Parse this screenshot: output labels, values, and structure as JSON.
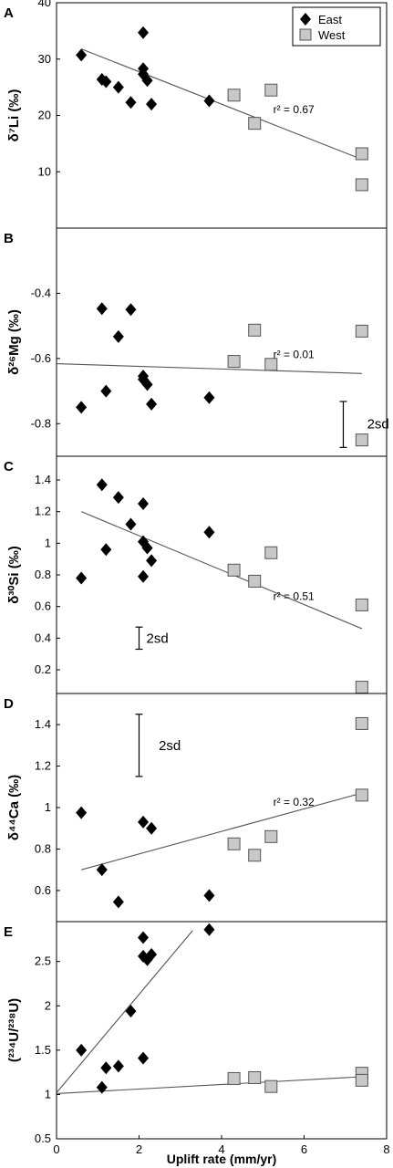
{
  "chart_data": [
    {
      "panel_letter": "A",
      "type": "scatter",
      "ylabel": "δ⁷Li (‰)",
      "ylim": [
        0,
        40
      ],
      "yticks": [
        "10",
        "20",
        "30",
        "40"
      ],
      "legend": {
        "placement": "top-right",
        "entries": [
          "East",
          "West"
        ]
      },
      "series": [
        {
          "name": "East",
          "marker": "diamond",
          "color": "#000000",
          "points": [
            [
              0.6,
              30.7
            ],
            [
              1.1,
              26.4
            ],
            [
              1.2,
              26.0
            ],
            [
              1.5,
              25.0
            ],
            [
              1.8,
              22.3
            ],
            [
              2.1,
              34.7
            ],
            [
              2.1,
              28.3
            ],
            [
              2.1,
              27.3
            ],
            [
              2.2,
              26.2
            ],
            [
              2.3,
              22.0
            ],
            [
              3.7,
              22.6
            ]
          ]
        },
        {
          "name": "West",
          "marker": "square",
          "color": "#c8c8c8",
          "points": [
            [
              4.3,
              23.6
            ],
            [
              4.8,
              18.6
            ],
            [
              5.2,
              24.5
            ],
            [
              7.4,
              13.2
            ],
            [
              7.4,
              7.7
            ]
          ]
        }
      ],
      "trendlines": [
        {
          "x1": 0.6,
          "y1": 31.8,
          "x2": 7.4,
          "y2": 12.2
        }
      ],
      "annotations": [
        {
          "text": "r² = 0.67",
          "x": 5.75,
          "y": 21.2
        }
      ]
    },
    {
      "panel_letter": "B",
      "type": "scatter",
      "ylabel": "δ²⁶Mg (‰)",
      "ylim": [
        -0.9,
        -0.2
      ],
      "yticks": [
        "-0.8",
        "-0.6",
        "-0.4"
      ],
      "series": [
        {
          "name": "East",
          "marker": "diamond",
          "color": "#000000",
          "points": [
            [
              0.6,
              -0.75
            ],
            [
              1.1,
              -0.447
            ],
            [
              1.2,
              -0.7
            ],
            [
              1.5,
              -0.533
            ],
            [
              1.8,
              -0.45
            ],
            [
              2.1,
              -0.654
            ],
            [
              2.1,
              -0.664
            ],
            [
              2.2,
              -0.68
            ],
            [
              2.3,
              -0.74
            ],
            [
              3.7,
              -0.72
            ]
          ]
        },
        {
          "name": "West",
          "marker": "square",
          "color": "#c8c8c8",
          "points": [
            [
              4.3,
              -0.609
            ],
            [
              4.8,
              -0.513
            ],
            [
              5.2,
              -0.618
            ],
            [
              7.4,
              -0.516
            ],
            [
              7.4,
              -0.85
            ]
          ]
        }
      ],
      "trendlines": [
        {
          "x1": 0.0,
          "y1": -0.616,
          "x2": 7.4,
          "y2": -0.646
        }
      ],
      "annotations": [
        {
          "text": "r² = 0.01",
          "x": 5.75,
          "y": -0.585
        },
        {
          "text": "2sd",
          "x": 7.35,
          "y": -0.8
        }
      ],
      "error_bar": {
        "x": 6.95,
        "y_low": -0.873,
        "y_high": -0.732
      }
    },
    {
      "panel_letter": "C",
      "type": "scatter",
      "ylabel": "δ³⁰Si (‰)",
      "ylim": [
        0.05,
        1.55
      ],
      "yticks": [
        "0.2",
        "0.4",
        "0.6",
        "0.8",
        "1",
        "1.2",
        "1.4"
      ],
      "series": [
        {
          "name": "East",
          "marker": "diamond",
          "color": "#000000",
          "points": [
            [
              0.6,
              0.78
            ],
            [
              1.1,
              1.37
            ],
            [
              1.2,
              0.96
            ],
            [
              1.5,
              1.29
            ],
            [
              1.8,
              1.12
            ],
            [
              2.1,
              1.25
            ],
            [
              2.1,
              1.01
            ],
            [
              2.1,
              0.79
            ],
            [
              2.2,
              0.97
            ],
            [
              2.3,
              0.89
            ],
            [
              3.7,
              1.07
            ]
          ]
        },
        {
          "name": "West",
          "marker": "square",
          "color": "#c8c8c8",
          "points": [
            [
              4.3,
              0.83
            ],
            [
              4.8,
              0.76
            ],
            [
              5.2,
              0.94
            ],
            [
              7.4,
              0.61
            ],
            [
              7.4,
              0.09
            ]
          ]
        }
      ],
      "trendlines": [
        {
          "x1": 0.6,
          "y1": 1.2,
          "x2": 7.4,
          "y2": 0.46
        }
      ],
      "annotations": [
        {
          "text": "r² = 0.51",
          "x": 5.75,
          "y": 0.67
        },
        {
          "text": "2sd",
          "x": 2.0,
          "y": 0.4
        }
      ],
      "error_bar": {
        "x": 2.0,
        "y_low": 0.33,
        "y_high": 0.47
      }
    },
    {
      "panel_letter": "D",
      "type": "scatter",
      "ylabel": "δ⁴⁴Ca (‰)",
      "ylim": [
        0.45,
        1.55
      ],
      "yticks": [
        "0.6",
        "0.8",
        "1",
        "1.2",
        "1.4"
      ],
      "series": [
        {
          "name": "East",
          "marker": "diamond",
          "color": "#000000",
          "points": [
            [
              0.6,
              0.975
            ],
            [
              1.1,
              0.7
            ],
            [
              1.5,
              0.545
            ],
            [
              2.1,
              0.93
            ],
            [
              2.3,
              0.9
            ],
            [
              3.7,
              0.576
            ]
          ]
        },
        {
          "name": "West",
          "marker": "square",
          "color": "#c8c8c8",
          "points": [
            [
              4.3,
              0.825
            ],
            [
              4.8,
              0.77
            ],
            [
              5.2,
              0.86
            ],
            [
              7.4,
              1.06
            ],
            [
              7.4,
              1.405
            ]
          ]
        }
      ],
      "trendlines": [
        {
          "x1": 0.6,
          "y1": 0.7,
          "x2": 7.4,
          "y2": 1.07
        }
      ],
      "annotations": [
        {
          "text": "r² = 0.32",
          "x": 5.75,
          "y": 1.03
        },
        {
          "text": "2sd",
          "x": 2.3,
          "y": 1.3
        }
      ],
      "error_bar": {
        "x": 2.0,
        "y_low": 1.15,
        "y_high": 1.45
      }
    },
    {
      "panel_letter": "E",
      "type": "scatter",
      "ylabel": "(²³⁴U/²³⁸U)",
      "xlabel": "Uplift rate (mm/yr)",
      "xlim": [
        0,
        8
      ],
      "xticks": [
        "0",
        "2",
        "4",
        "6",
        "8"
      ],
      "ylim": [
        0.5,
        2.95
      ],
      "yticks": [
        "0.5",
        "1",
        "1.5",
        "2",
        "2.5"
      ],
      "series": [
        {
          "name": "East",
          "marker": "diamond",
          "color": "#000000",
          "points": [
            [
              0.6,
              1.5
            ],
            [
              1.1,
              1.08
            ],
            [
              1.2,
              1.3
            ],
            [
              1.5,
              1.32
            ],
            [
              1.8,
              1.94
            ],
            [
              2.1,
              1.41
            ],
            [
              2.1,
              2.77
            ],
            [
              2.1,
              2.56
            ],
            [
              2.2,
              2.52
            ],
            [
              2.3,
              2.58
            ],
            [
              3.7,
              2.86
            ]
          ]
        },
        {
          "name": "West",
          "marker": "square",
          "color": "#c8c8c8",
          "points": [
            [
              4.3,
              1.18
            ],
            [
              4.8,
              1.19
            ],
            [
              5.2,
              1.09
            ],
            [
              7.4,
              1.24
            ],
            [
              7.4,
              1.16
            ]
          ]
        }
      ],
      "trendlines": [
        {
          "x1": 0.0,
          "y1": 1.02,
          "x2": 3.3,
          "y2": 2.85
        },
        {
          "x1": 0.0,
          "y1": 1.01,
          "x2": 7.4,
          "y2": 1.2
        }
      ]
    }
  ]
}
